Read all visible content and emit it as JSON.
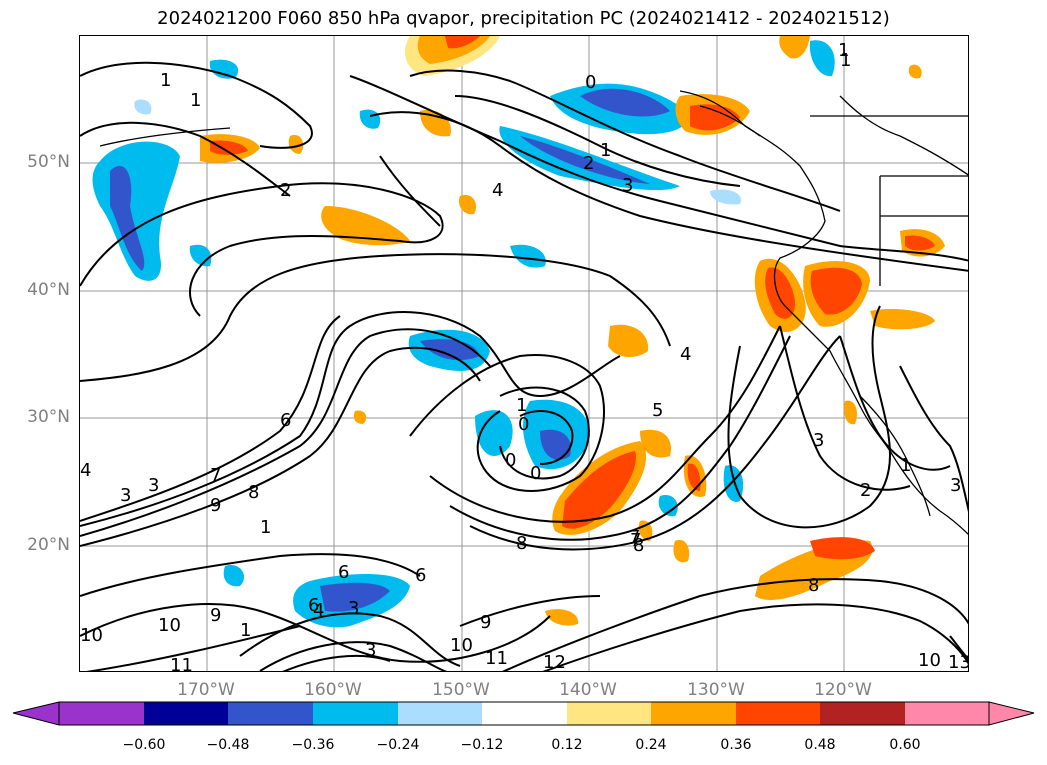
{
  "title": "2024021200 F060 850 hPa qvapor, precipitation PC (2024021412 - 2024021512)",
  "lat_labels": [
    "50°N",
    "40°N",
    "30°N",
    "20°N"
  ],
  "lon_labels": [
    "170°W",
    "160°W",
    "150°W",
    "140°W",
    "130°W",
    "120°W"
  ],
  "colorbar": {
    "ticks": [
      "−0.60",
      "−0.48",
      "−0.36",
      "−0.24",
      "−0.12",
      "0.12",
      "0.24",
      "0.36",
      "0.48",
      "0.60"
    ],
    "colors": [
      "#9933cc",
      "#000099",
      "#3355cc",
      "#00bbee",
      "#aaddff",
      "#ffffff",
      "#ffe680",
      "#ffa500",
      "#ff4500",
      "#b22222",
      "#ff88aa"
    ]
  },
  "contour_labels": [
    "1",
    "1",
    "2",
    "1",
    "2",
    "3",
    "4",
    "0",
    "1",
    "1",
    "2",
    "3",
    "4",
    "5",
    "1",
    "0",
    "0",
    "0",
    "6",
    "7",
    "8",
    "9",
    "3",
    "3",
    "1",
    "8",
    "6",
    "6",
    "7",
    "6",
    "4",
    "3",
    "3",
    "9",
    "10",
    "10",
    "11",
    "9",
    "10",
    "11",
    "12",
    "8",
    "7",
    "8",
    "3",
    "2",
    "1",
    "3",
    "1",
    "10",
    "13",
    "4"
  ]
}
